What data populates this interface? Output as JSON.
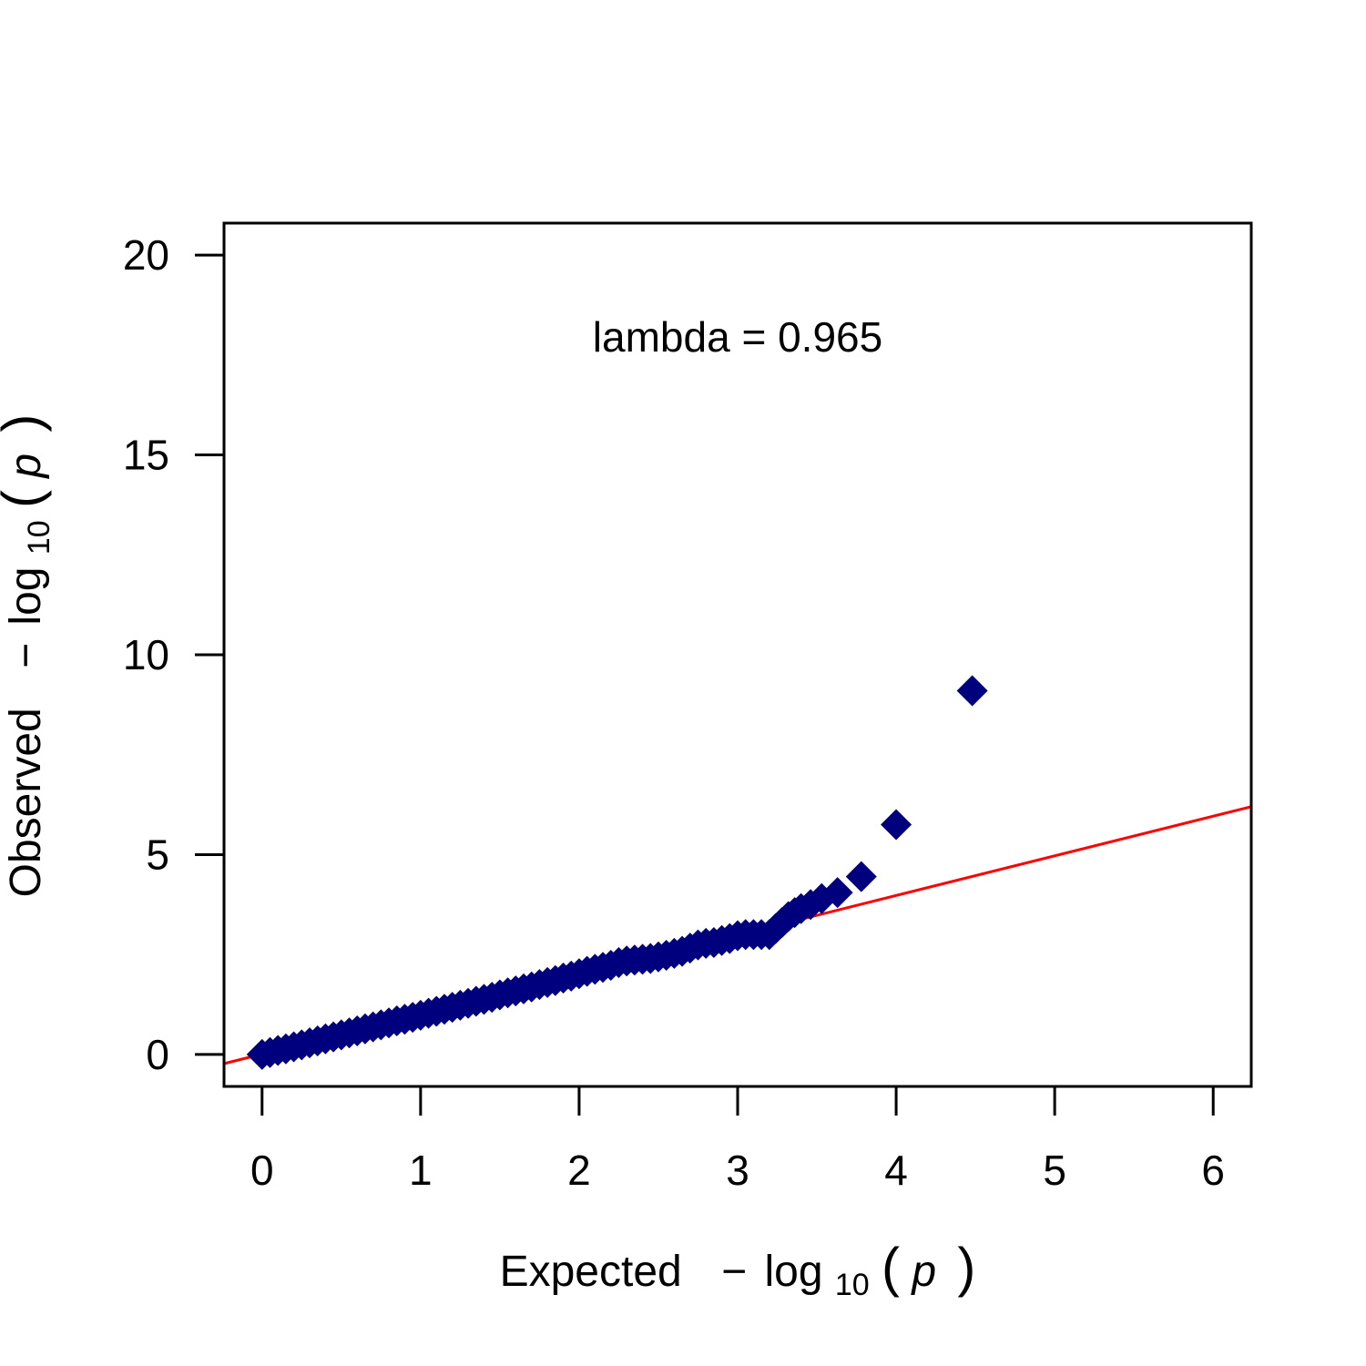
{
  "chart_data": {
    "type": "scatter",
    "title": "",
    "xlabel": {
      "prefix": "Expected",
      "minus": "−",
      "log": "log",
      "base": "10",
      "var": "p"
    },
    "ylabel": {
      "prefix": "Observed",
      "minus": "−",
      "log": "log",
      "base": "10",
      "var": "p"
    },
    "annotation": "lambda = 0.965",
    "xlim": [
      -0.24,
      6.24
    ],
    "ylim": [
      -0.8,
      20.8
    ],
    "xticks": [
      "0",
      "1",
      "2",
      "3",
      "4",
      "5",
      "6"
    ],
    "yticks": [
      "0",
      "5",
      "10",
      "15",
      "20"
    ],
    "marker": {
      "shape": "diamond",
      "color": "#00007F"
    },
    "reference_line": {
      "color": "#FF0000",
      "points": [
        [
          -0.24,
          -0.23
        ],
        [
          6.24,
          6.2
        ]
      ]
    },
    "points": [
      [
        0.0,
        0.0
      ],
      [
        0.05,
        0.05
      ],
      [
        0.1,
        0.1
      ],
      [
        0.15,
        0.14
      ],
      [
        0.2,
        0.19
      ],
      [
        0.25,
        0.24
      ],
      [
        0.3,
        0.29
      ],
      [
        0.35,
        0.34
      ],
      [
        0.4,
        0.39
      ],
      [
        0.45,
        0.44
      ],
      [
        0.5,
        0.49
      ],
      [
        0.55,
        0.54
      ],
      [
        0.6,
        0.59
      ],
      [
        0.65,
        0.64
      ],
      [
        0.7,
        0.69
      ],
      [
        0.75,
        0.74
      ],
      [
        0.8,
        0.79
      ],
      [
        0.85,
        0.84
      ],
      [
        0.9,
        0.88
      ],
      [
        0.95,
        0.93
      ],
      [
        1.0,
        0.98
      ],
      [
        1.05,
        1.03
      ],
      [
        1.1,
        1.08
      ],
      [
        1.15,
        1.13
      ],
      [
        1.2,
        1.18
      ],
      [
        1.25,
        1.23
      ],
      [
        1.3,
        1.28
      ],
      [
        1.35,
        1.33
      ],
      [
        1.4,
        1.38
      ],
      [
        1.45,
        1.43
      ],
      [
        1.5,
        1.49
      ],
      [
        1.55,
        1.54
      ],
      [
        1.6,
        1.59
      ],
      [
        1.65,
        1.64
      ],
      [
        1.7,
        1.69
      ],
      [
        1.75,
        1.75
      ],
      [
        1.8,
        1.8
      ],
      [
        1.85,
        1.85
      ],
      [
        1.9,
        1.91
      ],
      [
        1.95,
        1.96
      ],
      [
        2.0,
        2.02
      ],
      [
        2.05,
        2.08
      ],
      [
        2.1,
        2.13
      ],
      [
        2.15,
        2.18
      ],
      [
        2.2,
        2.23
      ],
      [
        2.25,
        2.3
      ],
      [
        2.3,
        2.34
      ],
      [
        2.35,
        2.36
      ],
      [
        2.4,
        2.38
      ],
      [
        2.45,
        2.4
      ],
      [
        2.5,
        2.44
      ],
      [
        2.55,
        2.48
      ],
      [
        2.6,
        2.53
      ],
      [
        2.65,
        2.58
      ],
      [
        2.7,
        2.66
      ],
      [
        2.75,
        2.74
      ],
      [
        2.8,
        2.78
      ],
      [
        2.85,
        2.8
      ],
      [
        2.9,
        2.85
      ],
      [
        2.95,
        2.9
      ],
      [
        3.0,
        2.97
      ],
      [
        3.05,
        3.0
      ],
      [
        3.1,
        3.0
      ],
      [
        3.15,
        3.0
      ],
      [
        3.2,
        3.0
      ],
      [
        3.24,
        3.15
      ],
      [
        3.28,
        3.3
      ],
      [
        3.32,
        3.45
      ],
      [
        3.36,
        3.55
      ],
      [
        3.4,
        3.65
      ],
      [
        3.46,
        3.75
      ],
      [
        3.53,
        3.9
      ],
      [
        3.63,
        4.05
      ],
      [
        3.78,
        4.45
      ],
      [
        4.0,
        5.75
      ],
      [
        4.48,
        9.1
      ]
    ]
  }
}
